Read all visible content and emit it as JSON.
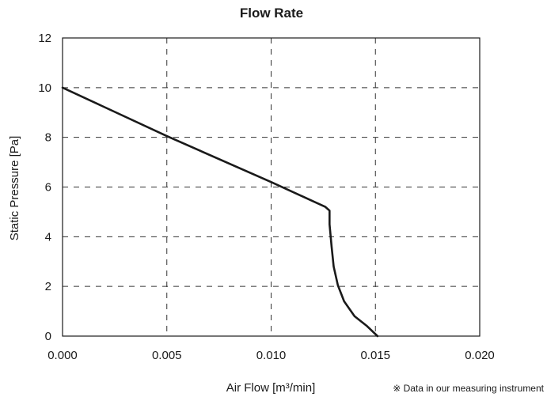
{
  "chart_data": {
    "type": "line",
    "title": "Flow Rate",
    "xlabel": "Air Flow [m³/min]",
    "ylabel": "Static Pressure [Pa]",
    "note": "※ Data in our measuring instrument",
    "xlim": [
      0,
      0.02
    ],
    "ylim": [
      0,
      12
    ],
    "x_ticks": [
      "0.000",
      "0.005",
      "0.010",
      "0.015",
      "0.020"
    ],
    "y_ticks": [
      "0",
      "2",
      "4",
      "6",
      "8",
      "10",
      "12"
    ],
    "grid": true,
    "grid_style": "dashed",
    "line_color": "#1a1a1a",
    "series": [
      {
        "x": [
          0.0,
          0.005,
          0.01,
          0.0126,
          0.0128,
          0.0128,
          0.0129,
          0.013,
          0.0132,
          0.0135,
          0.014,
          0.0146,
          0.0151
        ],
        "y": [
          10.0,
          8.05,
          6.2,
          5.2,
          5.05,
          4.5,
          3.6,
          2.8,
          2.05,
          1.4,
          0.8,
          0.4,
          0.0
        ]
      }
    ]
  }
}
